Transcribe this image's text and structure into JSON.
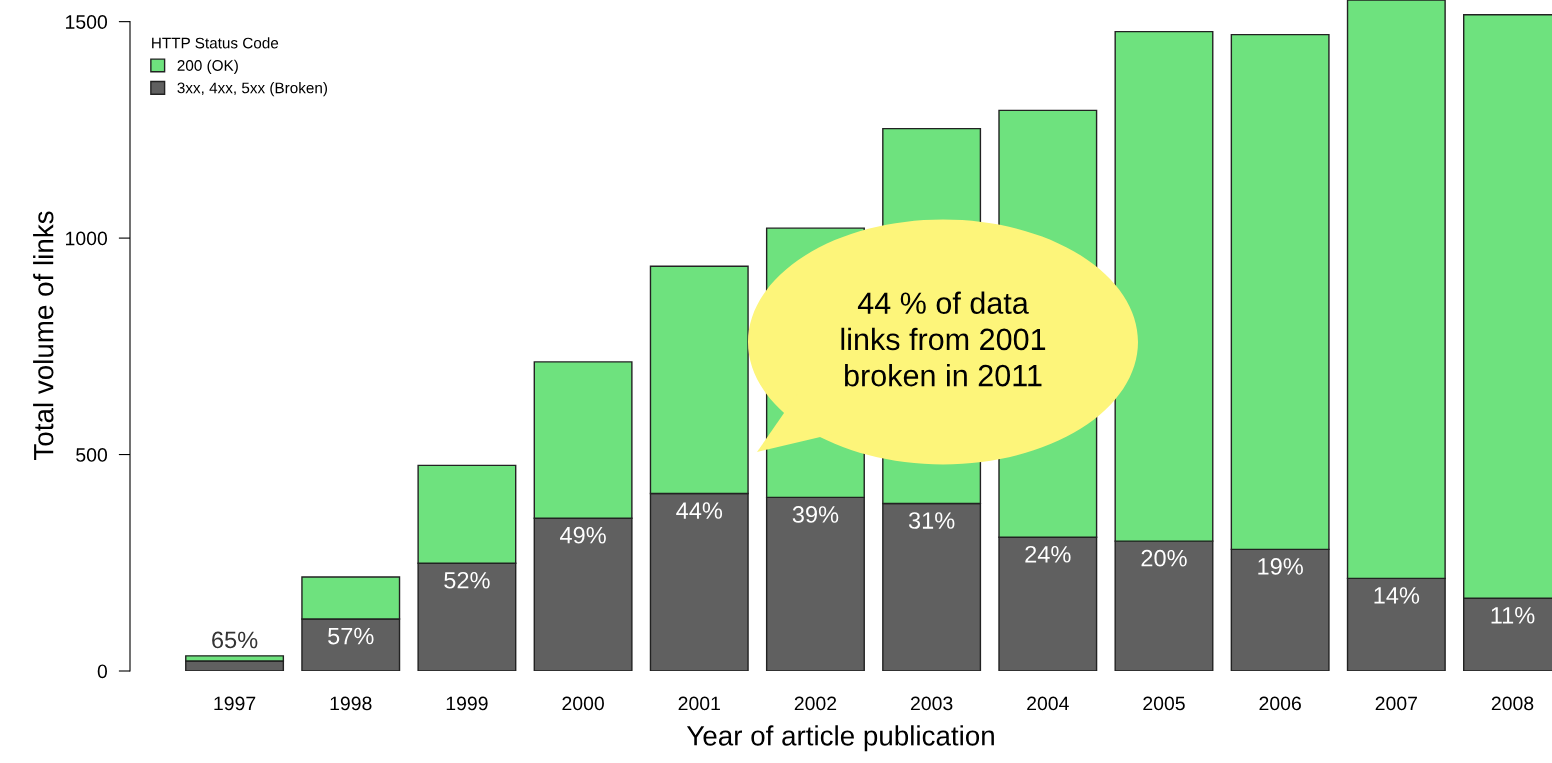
{
  "chart_data": {
    "type": "bar",
    "stacked": true,
    "xlabel": "Year of article publication",
    "ylabel": "Total volume of links",
    "legend_title": "HTTP Status Code",
    "legend": "top left",
    "categories": [
      "1997",
      "1998",
      "1999",
      "2000",
      "2001",
      "2002",
      "2003",
      "2004",
      "2005",
      "2006",
      "2007",
      "2008"
    ],
    "series": [
      {
        "name": "3xx, 4xx, 5xx (Broken)",
        "color": "#606060",
        "values": [
          23,
          120,
          249,
          353,
          410,
          401,
          387,
          309,
          300,
          281,
          214,
          168
        ]
      },
      {
        "name": "200 (OK)",
        "color": "#6ee27e",
        "values": [
          12,
          97,
          226,
          361,
          525,
          622,
          866,
          986,
          1177,
          1189,
          1336,
          1348
        ]
      }
    ],
    "ylim": [
      0,
      1550
    ],
    "yticks": [
      0,
      500,
      1000,
      1500
    ],
    "grid": false,
    "annotations": [
      {
        "text": "65%",
        "x": "1997",
        "y": 23
      },
      {
        "text": "57%",
        "x": "1998",
        "y": 120
      },
      {
        "text": "52%",
        "x": "1999",
        "y": 249
      },
      {
        "text": "49%",
        "x": "2000",
        "y": 353
      },
      {
        "text": "44%",
        "x": "2001",
        "y": 410
      },
      {
        "text": "39%",
        "x": "2002",
        "y": 401
      },
      {
        "text": "31%",
        "x": "2003",
        "y": 387
      },
      {
        "text": "24%",
        "x": "2004",
        "y": 309
      },
      {
        "text": "20%",
        "x": "2005",
        "y": 300
      },
      {
        "text": "19%",
        "x": "2006",
        "y": 281
      },
      {
        "text": "14%",
        "x": "2007",
        "y": 214
      },
      {
        "text": "11%",
        "x": "2008",
        "y": 168
      },
      "44 % of data\nlinks from 2001\nbroken in 2011"
    ]
  }
}
